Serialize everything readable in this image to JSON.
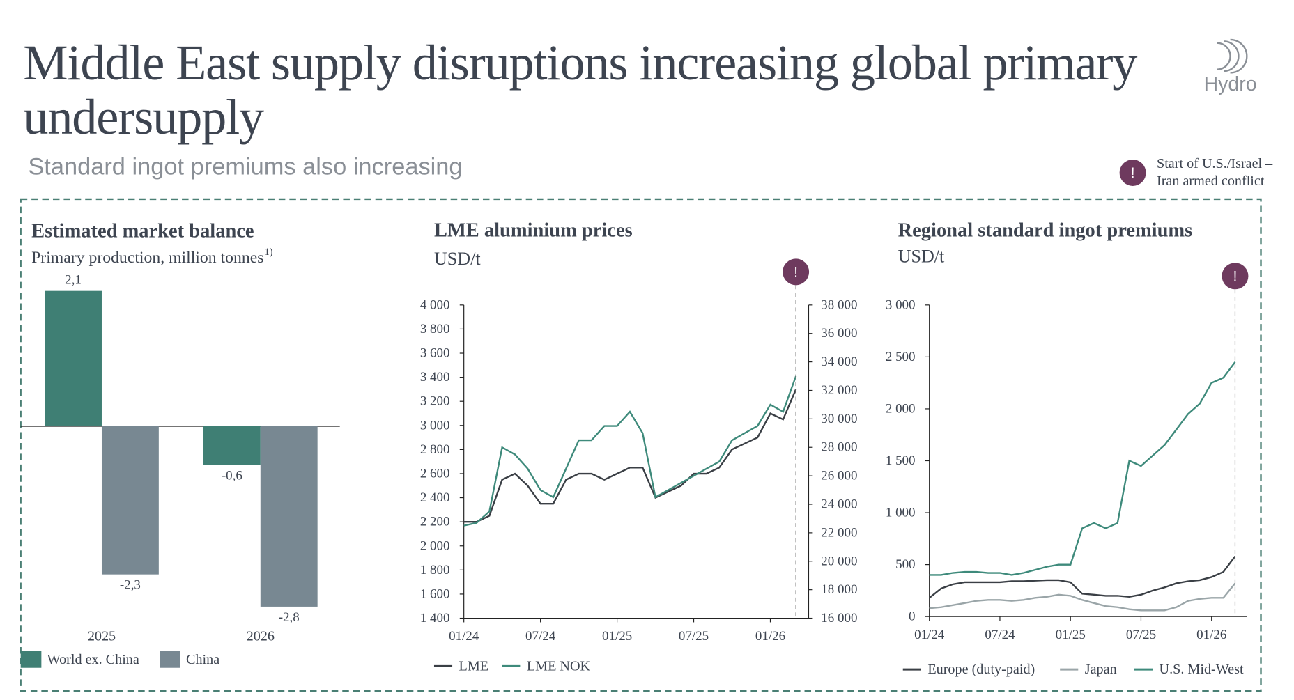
{
  "header": {
    "title": "Middle East supply disruptions increasing global primary undersupply",
    "subtitle": "Standard ingot premiums also increasing",
    "logo": "Hydro",
    "note": {
      "icon": "!",
      "lines": [
        "Start of U.S./Israel –",
        "Iran armed conflict"
      ]
    }
  },
  "chart_data": [
    {
      "type": "bar",
      "title": "Estimated market balance",
      "subtitle": "Primary production, million tonnes",
      "subtitle_note": "1)",
      "categories": [
        "2025",
        "2026"
      ],
      "ylim": [
        -2.8,
        2.1
      ],
      "series": [
        {
          "name": "World ex. China",
          "color": "#3f7f74",
          "values": [
            2.1,
            -0.6
          ],
          "value_labels": [
            "2,1",
            "-0,6"
          ]
        },
        {
          "name": "China",
          "color": "#788892",
          "values": [
            -2.3,
            -2.8
          ],
          "value_labels": [
            "-2,3",
            "-2,8"
          ]
        }
      ]
    },
    {
      "type": "line",
      "title": "LME aluminium prices",
      "subtitle": "USD/t",
      "x": [
        "2024-01",
        "2024-02",
        "2024-03",
        "2024-04",
        "2024-05",
        "2024-06",
        "2024-07",
        "2024-08",
        "2024-09",
        "2024-10",
        "2024-11",
        "2024-12",
        "2025-01",
        "2025-02",
        "2025-03",
        "2025-04",
        "2025-05",
        "2025-06",
        "2025-07",
        "2025-08",
        "2025-09",
        "2025-10",
        "2025-11",
        "2025-12",
        "2026-01",
        "2026-02",
        "2026-03"
      ],
      "xlim": [
        "2024-01",
        "2026-04"
      ],
      "xticks": [
        {
          "value": "2024-01",
          "label": "01/24"
        },
        {
          "value": "2024-07",
          "label": "07/24"
        },
        {
          "value": "2025-01",
          "label": "01/25"
        },
        {
          "value": "2025-07",
          "label": "07/25"
        },
        {
          "value": "2026-01",
          "label": "01/26"
        }
      ],
      "ylim": [
        1400,
        4000
      ],
      "yticks": [
        {
          "value": 1400,
          "label": "1 400"
        },
        {
          "value": 1600,
          "label": "1 600"
        },
        {
          "value": 1800,
          "label": "1 800"
        },
        {
          "value": 2000,
          "label": "2 000"
        },
        {
          "value": 2200,
          "label": "2 200"
        },
        {
          "value": 2400,
          "label": "2 400"
        },
        {
          "value": 2600,
          "label": "2 600"
        },
        {
          "value": 2800,
          "label": "2 800"
        },
        {
          "value": 3000,
          "label": "3 000"
        },
        {
          "value": 3200,
          "label": "3 200"
        },
        {
          "value": 3400,
          "label": "3 400"
        },
        {
          "value": 3600,
          "label": "3 600"
        },
        {
          "value": 3800,
          "label": "3 800"
        },
        {
          "value": 4000,
          "label": "4 000"
        }
      ],
      "y2lim": [
        16000,
        38000
      ],
      "y2ticks": [
        {
          "value": 16000,
          "label": "16 000"
        },
        {
          "value": 18000,
          "label": "18 000"
        },
        {
          "value": 20000,
          "label": "20 000"
        },
        {
          "value": 22000,
          "label": "22 000"
        },
        {
          "value": 24000,
          "label": "24 000"
        },
        {
          "value": 26000,
          "label": "26 000"
        },
        {
          "value": 28000,
          "label": "28 000"
        },
        {
          "value": 30000,
          "label": "30 000"
        },
        {
          "value": 32000,
          "label": "32 000"
        },
        {
          "value": 34000,
          "label": "34 000"
        },
        {
          "value": 36000,
          "label": "36 000"
        },
        {
          "value": 38000,
          "label": "38 000"
        }
      ],
      "event": {
        "x": "2026-03",
        "label": "!"
      },
      "series": [
        {
          "name": "LME",
          "color": "#3a3f45",
          "values": [
            2200,
            2200,
            2250,
            2550,
            2600,
            2500,
            2350,
            2350,
            2550,
            2600,
            2600,
            2550,
            2600,
            2650,
            2650,
            2400,
            2450,
            2500,
            2600,
            2600,
            2650,
            2800,
            2850,
            2900,
            3100,
            3050,
            3300
          ]
        },
        {
          "name": "LME NOK",
          "color": "#3e8a7b",
          "axis": "y2",
          "values": [
            22500,
            22700,
            23500,
            28000,
            27500,
            26500,
            25000,
            24500,
            26500,
            28500,
            28500,
            29500,
            29500,
            30500,
            29000,
            24500,
            25000,
            25500,
            26000,
            26500,
            27000,
            28500,
            29000,
            29500,
            31000,
            30500,
            33000
          ]
        }
      ]
    },
    {
      "type": "line",
      "title": "Regional standard ingot premiums",
      "subtitle": "USD/t",
      "x": [
        "2024-01",
        "2024-02",
        "2024-03",
        "2024-04",
        "2024-05",
        "2024-06",
        "2024-07",
        "2024-08",
        "2024-09",
        "2024-10",
        "2024-11",
        "2024-12",
        "2025-01",
        "2025-02",
        "2025-03",
        "2025-04",
        "2025-05",
        "2025-06",
        "2025-07",
        "2025-08",
        "2025-09",
        "2025-10",
        "2025-11",
        "2025-12",
        "2026-01",
        "2026-02",
        "2026-03"
      ],
      "xlim": [
        "2024-01",
        "2026-04"
      ],
      "xticks": [
        {
          "value": "2024-01",
          "label": "01/24"
        },
        {
          "value": "2024-07",
          "label": "07/24"
        },
        {
          "value": "2025-01",
          "label": "01/25"
        },
        {
          "value": "2025-07",
          "label": "07/25"
        },
        {
          "value": "2026-01",
          "label": "01/26"
        }
      ],
      "ylim": [
        0,
        3000
      ],
      "yticks": [
        0,
        500,
        {
          "value": 1000,
          "label": "1 000"
        },
        {
          "value": 1500,
          "label": "1 500"
        },
        {
          "value": 2000,
          "label": "2 000"
        },
        {
          "value": 2500,
          "label": "2 500"
        },
        {
          "value": 3000,
          "label": "3 000"
        }
      ],
      "event": {
        "x": "2026-03",
        "label": "!"
      },
      "series": [
        {
          "name": "Europe (duty-paid)",
          "color": "#3a3f45",
          "values": [
            180,
            270,
            310,
            330,
            330,
            330,
            330,
            340,
            340,
            345,
            350,
            350,
            330,
            220,
            210,
            200,
            200,
            190,
            210,
            250,
            280,
            320,
            340,
            350,
            380,
            430,
            580
          ]
        },
        {
          "name": "Japan",
          "color": "#9aa5a8",
          "values": [
            80,
            90,
            110,
            130,
            150,
            160,
            160,
            150,
            160,
            180,
            190,
            210,
            200,
            160,
            130,
            100,
            90,
            70,
            60,
            60,
            60,
            90,
            150,
            170,
            180,
            180,
            320
          ]
        },
        {
          "name": "U.S. Mid-West",
          "color": "#3e8a7b",
          "values": [
            400,
            400,
            420,
            430,
            430,
            420,
            420,
            400,
            420,
            450,
            480,
            500,
            500,
            850,
            900,
            850,
            900,
            1500,
            1450,
            1550,
            1650,
            1800,
            1950,
            2050,
            2250,
            2300,
            2450
          ]
        }
      ]
    }
  ]
}
